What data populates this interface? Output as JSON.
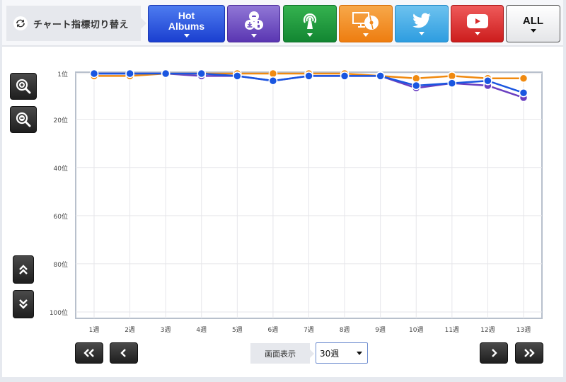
{
  "header": {
    "switch_label": "チャート指標切り替え",
    "switch_icon": "refresh-icon",
    "buttons": [
      {
        "id": "hot-albums",
        "label_line1": "Hot",
        "label_line2": "Albums",
        "color": "#2448d8"
      },
      {
        "id": "download-sales",
        "icon": "download-cd-cloud-icon",
        "color": "#6a48c0"
      },
      {
        "id": "radio",
        "icon": "broadcast-antenna-icon",
        "color": "#1f9a3c"
      },
      {
        "id": "pc-cd-lookup",
        "icon": "monitor-cd-icon",
        "color": "#f28a1e"
      },
      {
        "id": "twitter",
        "icon": "twitter-bird-icon",
        "color": "#40a9e8"
      },
      {
        "id": "youtube",
        "icon": "youtube-play-icon",
        "color": "#d82a2a"
      },
      {
        "id": "all",
        "label": "ALL",
        "color": "#f0f0f0"
      }
    ]
  },
  "controls": {
    "zoom_in": "zoom-in-icon",
    "zoom_out": "zoom-out-icon",
    "scroll_up": "double-chevron-up-icon",
    "scroll_down": "double-chevron-down-icon"
  },
  "footer": {
    "first_label": "«",
    "prev_label": "‹",
    "next_label": "›",
    "last_label": "»",
    "display_label": "画面表示",
    "period_value": "30週"
  },
  "chart_data": {
    "type": "line",
    "title": "",
    "xlabel": "",
    "ylabel": "",
    "categories": [
      "1週",
      "2週",
      "3週",
      "4週",
      "5週",
      "6週",
      "7週",
      "8週",
      "9週",
      "10週",
      "11週",
      "12週",
      "13週"
    ],
    "y_ticks": [
      "1位",
      "20位",
      "40位",
      "60位",
      "80位",
      "100位"
    ],
    "y_tick_values": [
      1,
      20,
      40,
      60,
      80,
      100
    ],
    "ylim": [
      1,
      100
    ],
    "y_inverted": true,
    "grid": true,
    "legend": "none",
    "series": [
      {
        "name": "Purple",
        "color": "#6a3fc0",
        "values": [
          1,
          1,
          1,
          2,
          2,
          4,
          2,
          2,
          2,
          7,
          5,
          6,
          11
        ]
      },
      {
        "name": "Orange",
        "color": "#f08a10",
        "values": [
          2,
          2,
          1,
          1,
          1,
          1,
          1,
          1,
          2,
          3,
          2,
          3,
          3
        ]
      },
      {
        "name": "Blue",
        "color": "#1a56e0",
        "values": [
          1,
          1,
          1,
          1,
          2,
          4,
          2,
          2,
          2,
          6,
          5,
          4,
          9
        ]
      }
    ]
  }
}
